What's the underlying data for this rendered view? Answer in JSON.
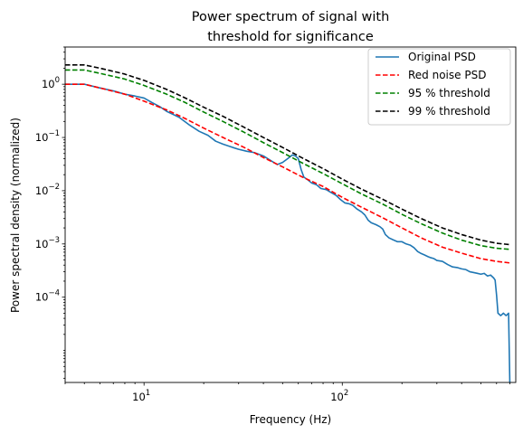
{
  "chart_data": {
    "type": "line",
    "title": [
      "Power spectrum of signal with",
      "threshold for significance"
    ],
    "xlabel": "Frequency (Hz)",
    "ylabel": "Power spectral density (normalized)",
    "xscale": "log",
    "yscale": "log",
    "xlim": [
      4,
      750
    ],
    "ylim": [
      2.5e-06,
      5
    ],
    "grid": false,
    "legend_position": "upper-right",
    "x_ticks": [
      {
        "value": 10,
        "base": "10",
        "exp": "1"
      },
      {
        "value": 100,
        "base": "10",
        "exp": "2"
      }
    ],
    "y_ticks": [
      {
        "value": 0.0001,
        "base": "10",
        "exp": "−4"
      },
      {
        "value": 0.001,
        "base": "10",
        "exp": "−3"
      },
      {
        "value": 0.01,
        "base": "10",
        "exp": "−2"
      },
      {
        "value": 0.1,
        "base": "10",
        "exp": "−1"
      },
      {
        "value": 1,
        "base": "10",
        "exp": "0"
      }
    ],
    "series": [
      {
        "name": "Original PSD",
        "color": "#1f77b4",
        "dash": "solid",
        "points": [
          [
            4,
            1.0
          ],
          [
            5,
            1.0
          ],
          [
            6,
            0.85
          ],
          [
            7,
            0.75
          ],
          [
            8,
            0.65
          ],
          [
            9,
            0.6
          ],
          [
            10,
            0.55
          ],
          [
            11,
            0.45
          ],
          [
            12,
            0.38
          ],
          [
            13,
            0.31
          ],
          [
            15,
            0.24
          ],
          [
            17,
            0.17
          ],
          [
            19,
            0.13
          ],
          [
            21,
            0.11
          ],
          [
            23,
            0.085
          ],
          [
            25,
            0.075
          ],
          [
            28,
            0.065
          ],
          [
            30,
            0.06
          ],
          [
            33,
            0.055
          ],
          [
            36,
            0.052
          ],
          [
            40,
            0.045
          ],
          [
            44,
            0.036
          ],
          [
            47,
            0.031
          ],
          [
            50,
            0.034
          ],
          [
            53,
            0.04
          ],
          [
            56,
            0.047
          ],
          [
            58,
            0.045
          ],
          [
            60,
            0.04
          ],
          [
            62,
            0.025
          ],
          [
            64,
            0.018
          ],
          [
            67,
            0.016
          ],
          [
            70,
            0.014
          ],
          [
            74,
            0.013
          ],
          [
            78,
            0.011
          ],
          [
            83,
            0.0105
          ],
          [
            88,
            0.0092
          ],
          [
            93,
            0.0082
          ],
          [
            98,
            0.0068
          ],
          [
            103,
            0.0059
          ],
          [
            108,
            0.0057
          ],
          [
            113,
            0.0053
          ],
          [
            118,
            0.0046
          ],
          [
            125,
            0.004
          ],
          [
            130,
            0.0035
          ],
          [
            135,
            0.0028
          ],
          [
            140,
            0.0025
          ],
          [
            148,
            0.0023
          ],
          [
            155,
            0.0021
          ],
          [
            160,
            0.0019
          ],
          [
            165,
            0.0015
          ],
          [
            172,
            0.0013
          ],
          [
            180,
            0.0012
          ],
          [
            190,
            0.0011
          ],
          [
            200,
            0.0011
          ],
          [
            210,
            0.001
          ],
          [
            220,
            0.00095
          ],
          [
            230,
            0.00085
          ],
          [
            240,
            0.00072
          ],
          [
            250,
            0.00066
          ],
          [
            260,
            0.00062
          ],
          [
            270,
            0.00058
          ],
          [
            280,
            0.00055
          ],
          [
            290,
            0.00053
          ],
          [
            300,
            0.00049
          ],
          [
            320,
            0.00047
          ],
          [
            340,
            0.00041
          ],
          [
            360,
            0.00037
          ],
          [
            380,
            0.00036
          ],
          [
            400,
            0.00034
          ],
          [
            420,
            0.00033
          ],
          [
            440,
            0.0003
          ],
          [
            460,
            0.00029
          ],
          [
            480,
            0.00028
          ],
          [
            500,
            0.00027
          ],
          [
            520,
            0.00028
          ],
          [
            540,
            0.00025
          ],
          [
            560,
            0.00026
          ],
          [
            580,
            0.00023
          ],
          [
            590,
            0.00021
          ],
          [
            600,
            0.00011
          ],
          [
            610,
            5e-05
          ],
          [
            630,
            4.5e-05
          ],
          [
            650,
            5e-05
          ],
          [
            670,
            4.5e-05
          ],
          [
            690,
            5e-05
          ],
          [
            700,
            2.5e-06
          ]
        ]
      },
      {
        "name": "Red noise PSD",
        "color": "#ff0000",
        "dash": "dashed",
        "points": [
          [
            4,
            1.0
          ],
          [
            5,
            1.0
          ],
          [
            6,
            0.85
          ],
          [
            8,
            0.65
          ],
          [
            10,
            0.48
          ],
          [
            13,
            0.33
          ],
          [
            16,
            0.23
          ],
          [
            20,
            0.15
          ],
          [
            25,
            0.1
          ],
          [
            32,
            0.065
          ],
          [
            40,
            0.042
          ],
          [
            50,
            0.028
          ],
          [
            63,
            0.018
          ],
          [
            80,
            0.012
          ],
          [
            100,
            0.0075
          ],
          [
            125,
            0.0049
          ],
          [
            160,
            0.0031
          ],
          [
            200,
            0.002
          ],
          [
            250,
            0.0013
          ],
          [
            320,
            0.00087
          ],
          [
            400,
            0.00067
          ],
          [
            500,
            0.00053
          ],
          [
            600,
            0.00047
          ],
          [
            700,
            0.00044
          ]
        ]
      },
      {
        "name": "95 % threshold",
        "color": "#008000",
        "dash": "dashed",
        "points": [
          [
            4,
            1.85
          ],
          [
            5,
            1.85
          ],
          [
            6,
            1.6
          ],
          [
            8,
            1.25
          ],
          [
            10,
            0.95
          ],
          [
            13,
            0.65
          ],
          [
            16,
            0.46
          ],
          [
            20,
            0.3
          ],
          [
            25,
            0.2
          ],
          [
            32,
            0.125
          ],
          [
            40,
            0.08
          ],
          [
            50,
            0.052
          ],
          [
            63,
            0.033
          ],
          [
            80,
            0.021
          ],
          [
            100,
            0.0135
          ],
          [
            125,
            0.0087
          ],
          [
            160,
            0.0056
          ],
          [
            200,
            0.0036
          ],
          [
            250,
            0.0024
          ],
          [
            320,
            0.0016
          ],
          [
            400,
            0.00118
          ],
          [
            500,
            0.00093
          ],
          [
            600,
            0.00083
          ],
          [
            700,
            0.00079
          ]
        ]
      },
      {
        "name": "99 % threshold",
        "color": "#000000",
        "dash": "dashed",
        "points": [
          [
            4,
            2.3
          ],
          [
            5,
            2.3
          ],
          [
            6,
            2.0
          ],
          [
            8,
            1.55
          ],
          [
            10,
            1.18
          ],
          [
            13,
            0.8
          ],
          [
            16,
            0.56
          ],
          [
            20,
            0.37
          ],
          [
            25,
            0.25
          ],
          [
            32,
            0.155
          ],
          [
            40,
            0.1
          ],
          [
            50,
            0.065
          ],
          [
            63,
            0.041
          ],
          [
            80,
            0.026
          ],
          [
            100,
            0.0165
          ],
          [
            125,
            0.0107
          ],
          [
            160,
            0.0069
          ],
          [
            200,
            0.0045
          ],
          [
            250,
            0.003
          ],
          [
            320,
            0.002
          ],
          [
            400,
            0.0015
          ],
          [
            500,
            0.00118
          ],
          [
            600,
            0.00103
          ],
          [
            700,
            0.00097
          ]
        ]
      }
    ]
  }
}
